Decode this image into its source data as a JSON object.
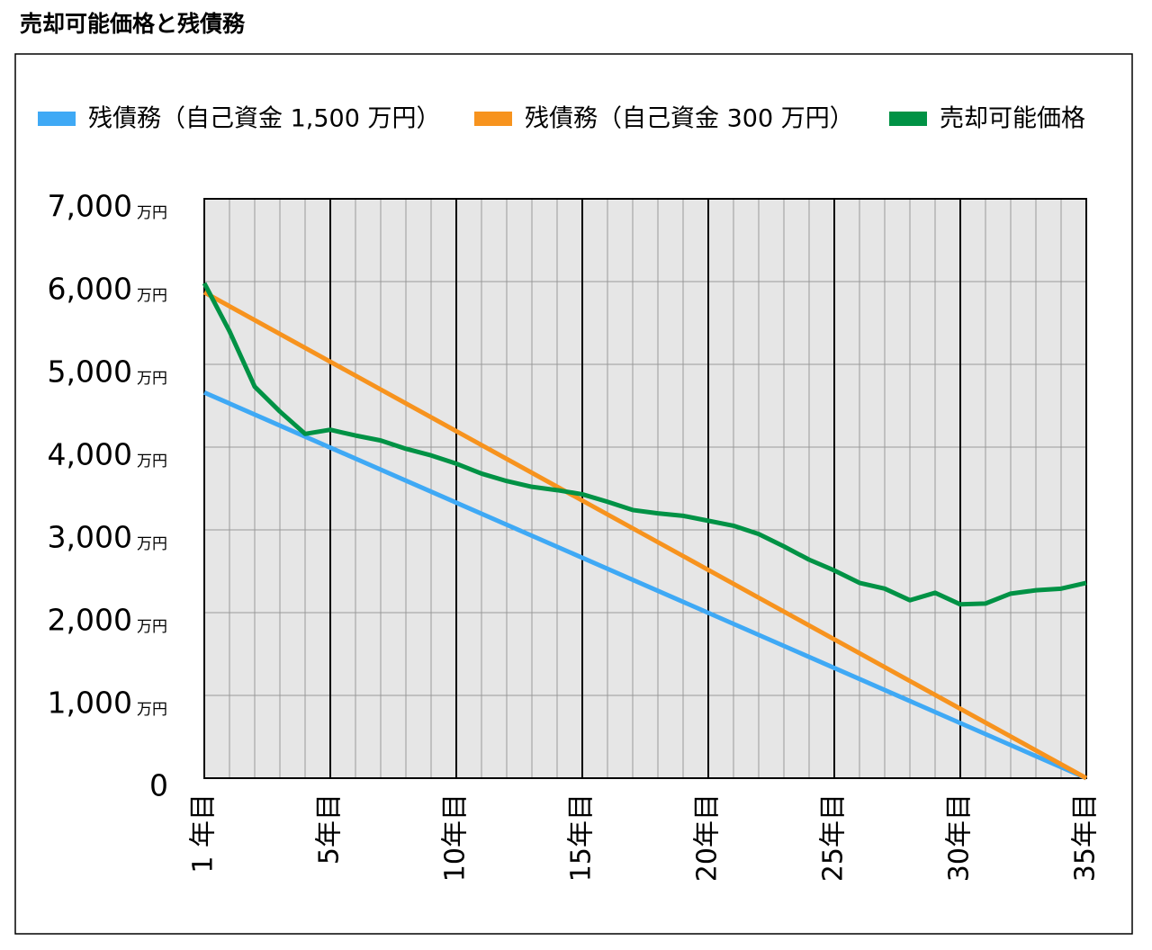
{
  "chart_data": {
    "type": "line",
    "title": "売却可能価格と残債務",
    "xlim": [
      0,
      35
    ],
    "xticks": [
      {
        "value": 0,
        "label": "1 年目"
      },
      {
        "value": 5,
        "label": "5年目"
      },
      {
        "value": 10,
        "label": "10年目"
      },
      {
        "value": 15,
        "label": "15年目"
      },
      {
        "value": 20,
        "label": "20年目"
      },
      {
        "value": 25,
        "label": "25年目"
      },
      {
        "value": 30,
        "label": "30年目"
      },
      {
        "value": 35,
        "label": "35年目"
      }
    ],
    "x_minor_ticks": [
      0,
      1,
      2,
      3,
      4,
      5,
      6,
      7,
      8,
      9,
      10,
      11,
      12,
      13,
      14,
      15,
      16,
      17,
      18,
      19,
      20,
      21,
      22,
      23,
      24,
      25,
      26,
      27,
      28,
      29,
      30,
      31,
      32,
      33,
      34,
      35
    ],
    "ylim": [
      0,
      7000
    ],
    "yticks": [
      0,
      {
        "value": 1000,
        "label": "1,000"
      },
      {
        "value": 2000,
        "label": "2,000"
      },
      {
        "value": 3000,
        "label": "3,000"
      },
      {
        "value": 4000,
        "label": "4,000"
      },
      {
        "value": 5000,
        "label": "5,000"
      },
      {
        "value": 6000,
        "label": "6,000"
      },
      {
        "value": 7000,
        "label": "7,000"
      }
    ],
    "y_unit": "万円",
    "grid": true,
    "legend": "top",
    "series": [
      {
        "name": "残債務（自己資金 1,500 万円）",
        "color": "#3fa9f5",
        "x": [
          0,
          35
        ],
        "values": [
          4660,
          0
        ]
      },
      {
        "name": "残債務（自己資金 300 万円）",
        "color": "#f7931e",
        "x": [
          0,
          35
        ],
        "values": [
          5870,
          0
        ]
      },
      {
        "name": "売却可能価格",
        "color": "#009245",
        "x": [
          0,
          1,
          2,
          3,
          4,
          5,
          6,
          7,
          8,
          9,
          10,
          11,
          12,
          13,
          14,
          15,
          16,
          17,
          18,
          19,
          20,
          21,
          22,
          23,
          24,
          25,
          26,
          27,
          28,
          29,
          30,
          31,
          32,
          33,
          34,
          35
        ],
        "values": [
          5980,
          5400,
          4730,
          4430,
          4160,
          4210,
          4140,
          4080,
          3980,
          3900,
          3800,
          3680,
          3590,
          3520,
          3480,
          3430,
          3340,
          3240,
          3200,
          3170,
          3110,
          3050,
          2950,
          2800,
          2640,
          2510,
          2360,
          2290,
          2150,
          2240,
          2100,
          2110,
          2230,
          2270,
          2290,
          2360
        ]
      }
    ]
  }
}
